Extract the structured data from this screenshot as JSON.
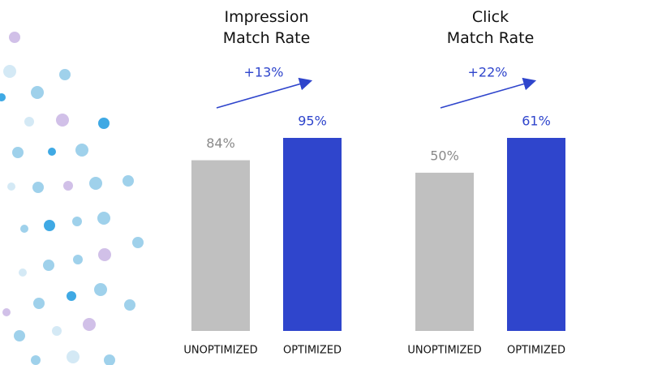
{
  "chart_data": [
    {
      "type": "bar",
      "title": "Impression\nMatch Rate",
      "categories": [
        "UNOPTIMIZED",
        "OPTIMIZED"
      ],
      "values": [
        84,
        95
      ],
      "value_labels": [
        "84%",
        "95%"
      ],
      "colors": [
        "#c0c0c0",
        "#2f45cc"
      ],
      "label_colors": [
        "#8a8a8a",
        "#2f45cc"
      ],
      "annotation": "+13%"
    },
    {
      "type": "bar",
      "title": "Click\nMatch Rate",
      "categories": [
        "UNOPTIMIZED",
        "OPTIMIZED"
      ],
      "values": [
        50,
        61
      ],
      "value_labels": [
        "50%",
        "61%"
      ],
      "colors": [
        "#c0c0c0",
        "#2f45cc"
      ],
      "label_colors": [
        "#8a8a8a",
        "#2f45cc"
      ],
      "annotation": "+22%"
    }
  ]
}
